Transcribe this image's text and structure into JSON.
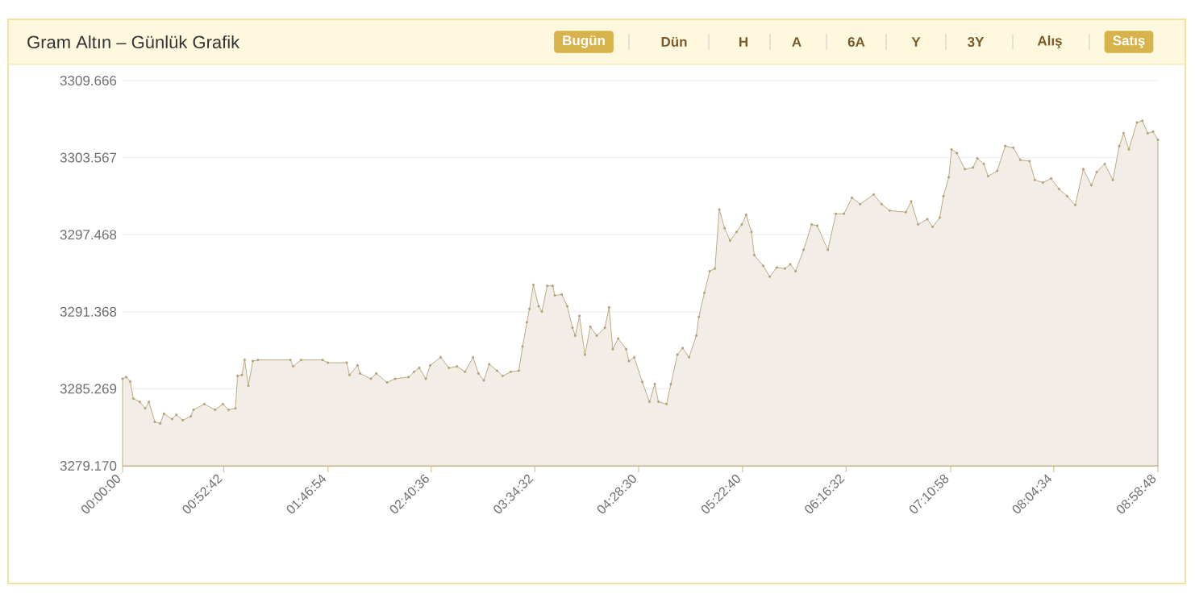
{
  "chart_data": {
    "type": "area",
    "title": "Gram Altın – Günlük Grafik",
    "annotations": [
      "Bugün",
      "Dün",
      "H",
      "A",
      "6A",
      "Y",
      "3Y",
      "Alış",
      "Satış"
    ],
    "x": [
      0,
      0.032,
      0.066,
      0.094,
      0.15,
      0.196,
      0.228,
      0.28,
      0.326,
      0.359,
      0.429,
      0.466,
      0.522,
      0.592,
      0.615,
      0.709,
      0.802,
      0.871,
      0.919,
      0.979,
      0.997,
      1.035,
      1.059,
      1.091,
      1.129,
      1.175,
      1.455,
      1.479,
      1.548,
      1.734,
      1.781,
      1.944,
      1.968,
      2.038,
      2.06,
      2.154,
      2.2,
      2.294,
      2.364,
      2.48,
      2.528,
      2.574,
      2.63,
      2.668,
      2.76,
      2.83,
      2.9,
      2.97,
      3.04,
      3.087,
      3.133,
      3.18,
      3.249,
      3.297,
      3.367,
      3.437,
      3.469,
      3.507,
      3.529,
      3.563,
      3.609,
      3.637,
      3.683,
      3.731,
      3.749,
      3.809,
      3.857,
      3.903,
      3.926,
      3.963,
      4.01,
      4.057,
      4.113,
      4.183,
      4.22,
      4.252,
      4.299,
      4.368,
      4.392,
      4.438,
      4.508,
      4.57,
      4.616,
      4.648,
      4.718,
      4.756,
      4.812,
      4.858,
      4.914,
      4.976,
      4.998,
      5.046,
      5.092,
      5.138,
      5.176,
      5.222,
      5.269,
      5.325,
      5.371,
      5.409,
      5.455,
      5.479,
      5.557,
      5.613,
      5.675,
      5.745,
      5.791,
      5.837,
      5.907,
      5.977,
      6.025,
      6.117,
      6.187,
      6.257,
      6.327,
      6.397,
      6.514,
      6.584,
      6.654,
      6.794,
      6.84,
      6.9,
      6.98,
      7.026,
      7.088,
      7.12,
      7.166,
      7.19,
      7.236,
      7.306,
      7.376,
      7.414,
      7.47,
      7.507,
      7.586,
      7.656,
      7.726,
      7.787,
      7.866,
      7.913,
      7.983,
      8.053,
      8.123,
      8.193,
      8.263,
      8.333,
      8.403,
      8.449,
      8.519,
      8.589,
      8.645,
      8.682,
      8.728,
      8.798,
      8.845,
      8.892,
      8.938,
      8.98
    ],
    "series": [
      {
        "color": "#b5a278",
        "values": [
          3286.06,
          3286.19,
          3285.84,
          3284.49,
          3284.23,
          3283.72,
          3284.23,
          3282.65,
          3282.52,
          3283.29,
          3282.87,
          3283.21,
          3282.78,
          3283.09,
          3283.6,
          3284.06,
          3283.6,
          3284.06,
          3283.6,
          3283.72,
          3286.28,
          3286.36,
          3287.56,
          3285.51,
          3287.46,
          3287.55,
          3287.55,
          3287.04,
          3287.55,
          3287.55,
          3287.33,
          3287.33,
          3286.36,
          3287.12,
          3286.48,
          3286.06,
          3286.48,
          3285.77,
          3286.06,
          3286.19,
          3286.61,
          3286.92,
          3286.06,
          3287.12,
          3287.76,
          3286.92,
          3287.04,
          3286.61,
          3287.76,
          3286.48,
          3285.93,
          3287.21,
          3286.7,
          3286.28,
          3286.61,
          3286.7,
          3288.61,
          3290.53,
          3291.59,
          3293.5,
          3291.8,
          3291.38,
          3293.42,
          3293.42,
          3292.66,
          3292.73,
          3291.8,
          3290.1,
          3289.47,
          3291.04,
          3287.97,
          3290.18,
          3289.47,
          3290.1,
          3291.71,
          3288.4,
          3289.25,
          3288.4,
          3287.46,
          3287.76,
          3285.81,
          3284.24,
          3285.64,
          3284.24,
          3284.06,
          3285.64,
          3287.97,
          3288.49,
          3287.76,
          3289.47,
          3290.95,
          3292.86,
          3294.57,
          3294.78,
          3299.46,
          3297.97,
          3297.0,
          3297.68,
          3298.28,
          3299.04,
          3297.68,
          3295.85,
          3295.0,
          3294.14,
          3294.87,
          3294.78,
          3295.12,
          3294.57,
          3296.27,
          3298.28,
          3298.18,
          3296.27,
          3299.12,
          3299.12,
          3300.39,
          3299.88,
          3300.65,
          3299.88,
          3299.37,
          3299.25,
          3300.1,
          3298.28,
          3298.69,
          3298.09,
          3298.82,
          3300.52,
          3302.01,
          3304.22,
          3303.93,
          3302.65,
          3302.78,
          3303.51,
          3303.07,
          3302.1,
          3302.52,
          3304.48,
          3304.35,
          3303.38,
          3303.29,
          3301.8,
          3301.59,
          3301.92,
          3301.08,
          3300.52,
          3299.81,
          3302.65,
          3301.38,
          3302.43,
          3303.07,
          3301.8,
          3304.48,
          3305.5,
          3304.22,
          3306.35,
          3306.48,
          3305.5,
          3305.62,
          3304.98
        ]
      }
    ],
    "xlim": [
      0,
      8.98
    ],
    "xticks": [
      {
        "value": 0,
        "label": "00:00:00"
      },
      {
        "value": 0.8783,
        "label": "00:52:42"
      },
      {
        "value": 1.7817,
        "label": "01:46:54"
      },
      {
        "value": 2.6767,
        "label": "02:40:36"
      },
      {
        "value": 3.5756,
        "label": "03:34:32"
      },
      {
        "value": 4.475,
        "label": "04:28:30"
      },
      {
        "value": 5.3778,
        "label": "05:22:40"
      },
      {
        "value": 6.2756,
        "label": "06:16:32"
      },
      {
        "value": 7.1828,
        "label": "07:10:58"
      },
      {
        "value": 8.0761,
        "label": "08:04:34"
      },
      {
        "value": 8.98,
        "label": "08:58:48"
      }
    ],
    "ylim": [
      3279.17,
      3309.666
    ],
    "yticks": [
      {
        "value": 3279.17,
        "label": "3279.170"
      },
      {
        "value": 3285.269,
        "label": "3285.269"
      },
      {
        "value": 3291.368,
        "label": "3291.368"
      },
      {
        "value": 3297.468,
        "label": "3297.468"
      },
      {
        "value": 3303.567,
        "label": "3303.567"
      },
      {
        "value": 3309.666,
        "label": "3309.666"
      }
    ],
    "grid": "y",
    "marker": "circle"
  }
}
